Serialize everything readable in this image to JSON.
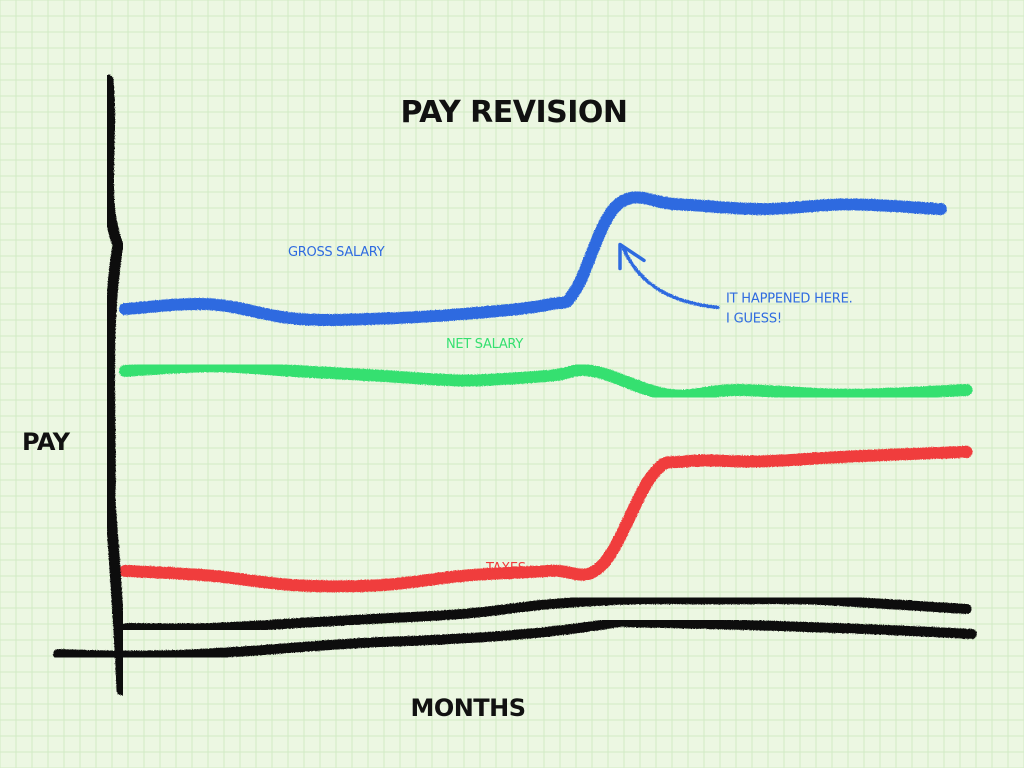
{
  "chart_data": {
    "type": "line",
    "title": "PAY REVISION",
    "xlabel": "MONTHS",
    "ylabel": "PAY",
    "grid": true,
    "xlim": [
      0,
      10
    ],
    "ylim": [
      0,
      10
    ],
    "series": [
      {
        "name": "GROSS SALARY",
        "color": "#2f6be0",
        "x": [
          0,
          1,
          2,
          3,
          4,
          5,
          5.3,
          5.8,
          6.5,
          7.5,
          8.5,
          9.6
        ],
        "y": [
          6.7,
          6.8,
          6.5,
          6.5,
          6.6,
          6.8,
          7.1,
          8.9,
          8.9,
          8.8,
          8.9,
          8.8
        ]
      },
      {
        "name": "NET SALARY",
        "color": "#35e070",
        "x": [
          0,
          1,
          2,
          3,
          4,
          5,
          5.5,
          6.4,
          7.2,
          8.5,
          9.9
        ],
        "y": [
          5.4,
          5.5,
          5.4,
          5.3,
          5.2,
          5.3,
          5.4,
          4.9,
          5.0,
          4.9,
          5.0
        ]
      },
      {
        "name": "TAXES",
        "color": "#f03c3c",
        "x": [
          0,
          1,
          2,
          3,
          4,
          5,
          5.6,
          6.2,
          6.6,
          7.5,
          8.5,
          9.9
        ],
        "y": [
          1.2,
          1.1,
          0.9,
          0.9,
          1.1,
          1.2,
          1.3,
          3.2,
          3.5,
          3.5,
          3.6,
          3.7
        ]
      },
      {
        "name": "",
        "color": "#111111",
        "x": [
          0,
          1,
          2,
          3,
          4,
          5,
          6,
          7,
          8,
          9,
          9.9
        ],
        "y": [
          0.0,
          0.0,
          0.1,
          0.2,
          0.3,
          0.5,
          0.6,
          0.6,
          0.6,
          0.5,
          0.4
        ]
      }
    ],
    "annotations": [
      {
        "lines": [
          "IT HAPPENED HERE.",
          "I GUESS!"
        ],
        "color": "#2f6be0",
        "point": [
          5.8,
          8.1
        ]
      }
    ]
  },
  "colors": {
    "background": "#ecf7e2",
    "grid": "#d2ebc4",
    "axis": "#111111"
  }
}
